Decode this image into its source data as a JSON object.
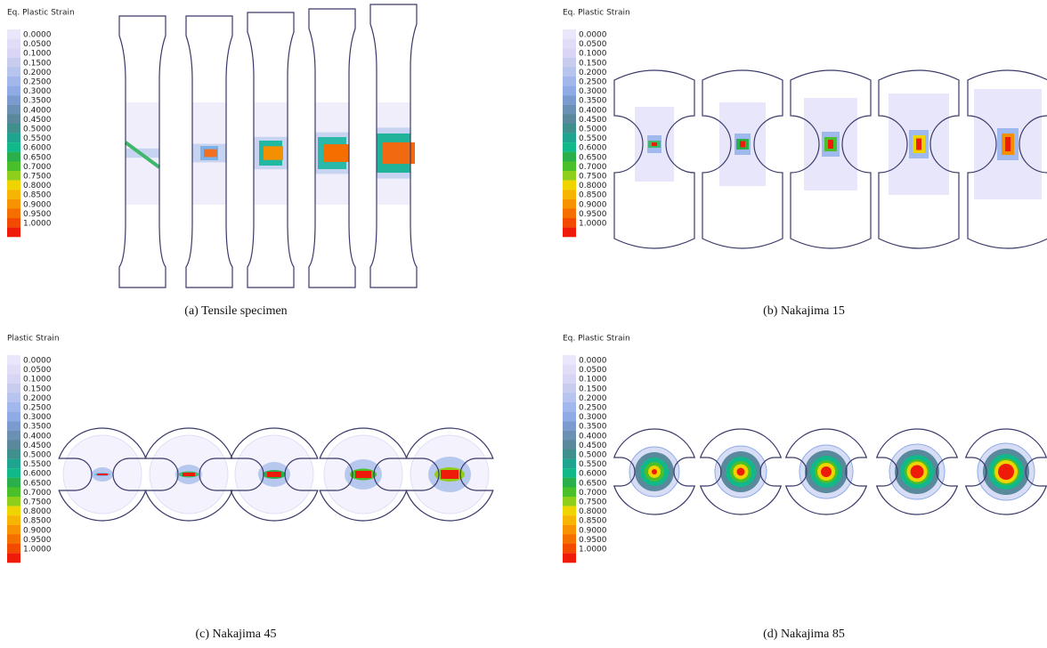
{
  "panels": [
    {
      "legend_title": "Eq. Plastic Strain",
      "caption": "(a) Tensile specimen"
    },
    {
      "legend_title": "Eq. Plastic Strain",
      "caption": "(b) Nakajima 15"
    },
    {
      "legend_title": "Plastic Strain",
      "caption": "(c) Nakajima 45"
    },
    {
      "legend_title": "Eq. Plastic Strain",
      "caption": "(d) Nakajima 85"
    }
  ],
  "scale_labels": [
    "0.0000",
    "0.0500",
    "0.1000",
    "0.1500",
    "0.2000",
    "0.2500",
    "0.3000",
    "0.3500",
    "0.4000",
    "0.4500",
    "0.5000",
    "0.5500",
    "0.6000",
    "0.6500",
    "0.7000",
    "0.7500",
    "0.8000",
    "0.8500",
    "0.9000",
    "0.9500",
    "1.0000"
  ]
}
